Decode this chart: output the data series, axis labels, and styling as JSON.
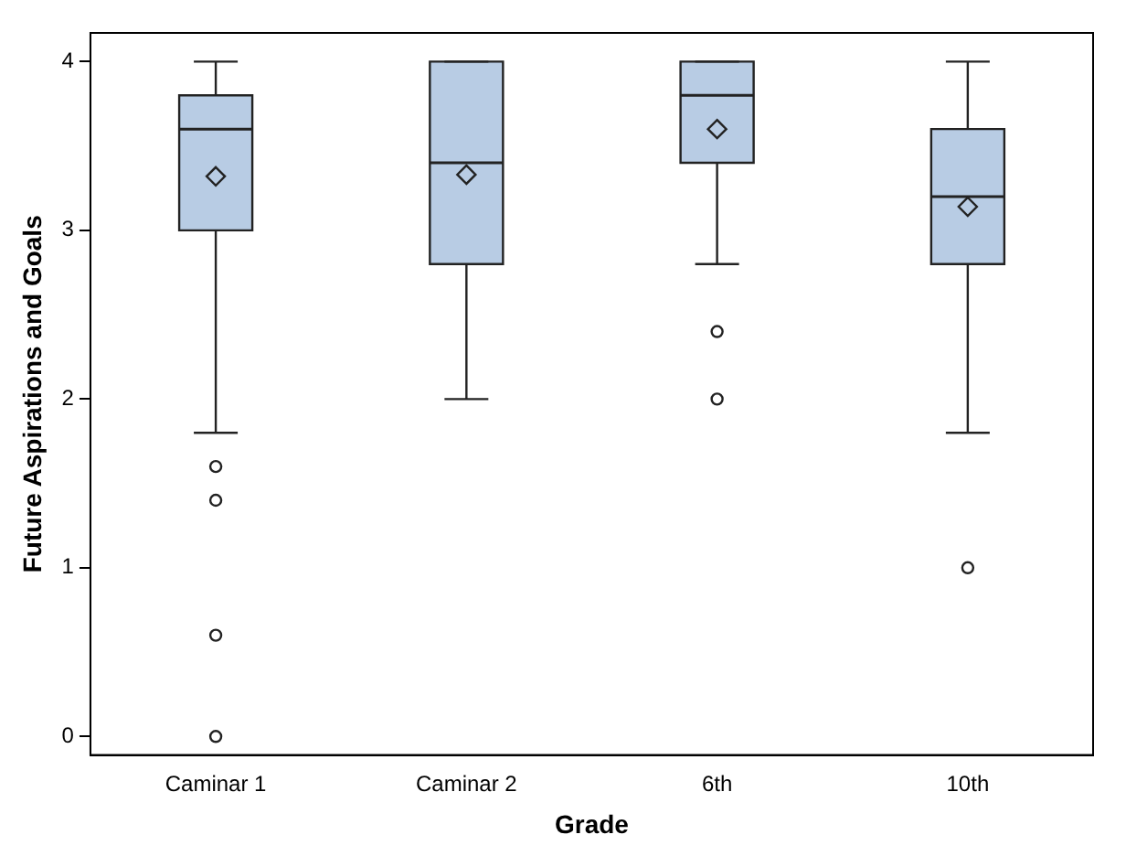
{
  "chart_data": {
    "type": "box",
    "xlabel": "Grade",
    "ylabel": "Future Aspirations and Goals",
    "categories": [
      "Caminar 1",
      "Caminar 2",
      "6th",
      "10th"
    ],
    "color": "#b8cce4",
    "ylim": [
      -0.11,
      4.17
    ],
    "yticks": [
      0,
      1,
      2,
      3,
      4
    ],
    "grid": false,
    "legend": false,
    "boxes": [
      {
        "low": 1.8,
        "q1": 3.0,
        "median": 3.6,
        "q3": 3.8,
        "high": 4,
        "mean": 3.32,
        "outliers": [
          1.6,
          1.4,
          0.6,
          0
        ]
      },
      {
        "low": 2.0,
        "q1": 2.8,
        "median": 3.4,
        "q3": 4,
        "high": 4,
        "mean": 3.33
      },
      {
        "low": 2.8,
        "q1": 3.4,
        "median": 3.8,
        "q3": 4,
        "high": 4,
        "mean": 3.6,
        "outliers": [
          2.4,
          2.0
        ]
      },
      {
        "low": 1.8,
        "q1": 2.8,
        "median": 3.2,
        "q3": 3.6,
        "high": 4,
        "mean": 3.14,
        "outliers": [
          1.0
        ]
      }
    ]
  }
}
